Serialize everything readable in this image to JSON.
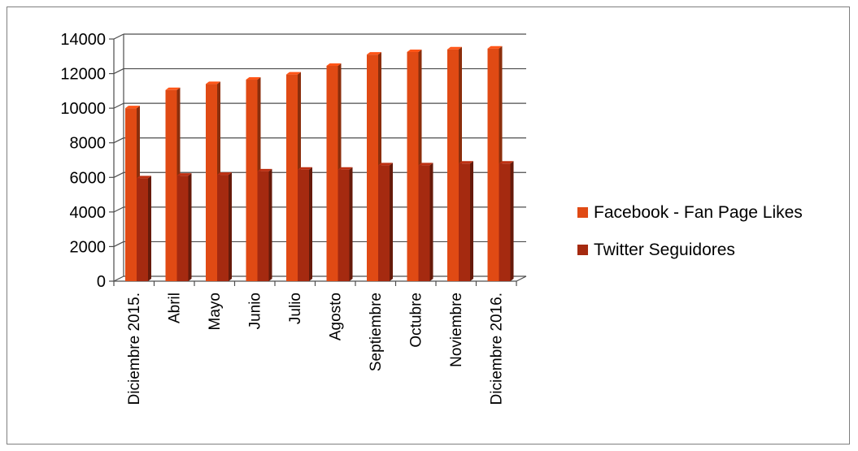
{
  "chart_data": {
    "type": "bar",
    "title": "",
    "xlabel": "",
    "ylabel": "",
    "ylim": [
      0,
      14000
    ],
    "yticks": [
      0,
      2000,
      4000,
      6000,
      8000,
      10000,
      12000,
      14000
    ],
    "grid": true,
    "legend_position": "right",
    "categories": [
      "Diciembre 2015.",
      "Abril",
      "Mayo",
      "Junio",
      "Julio",
      "Agosto",
      "Septiembre",
      "Octubre",
      "Noviembre",
      "Diciembre 2016."
    ],
    "series": [
      {
        "name": "Facebook - Fan Page  Likes",
        "color": "#E04A14",
        "values": [
          10000,
          11050,
          11400,
          11650,
          11950,
          12450,
          13100,
          13250,
          13400,
          13450
        ]
      },
      {
        "name": "Twitter Seguidores",
        "color": "#A52A10",
        "values": [
          5950,
          6100,
          6150,
          6350,
          6450,
          6450,
          6700,
          6700,
          6800,
          6800
        ]
      }
    ]
  }
}
